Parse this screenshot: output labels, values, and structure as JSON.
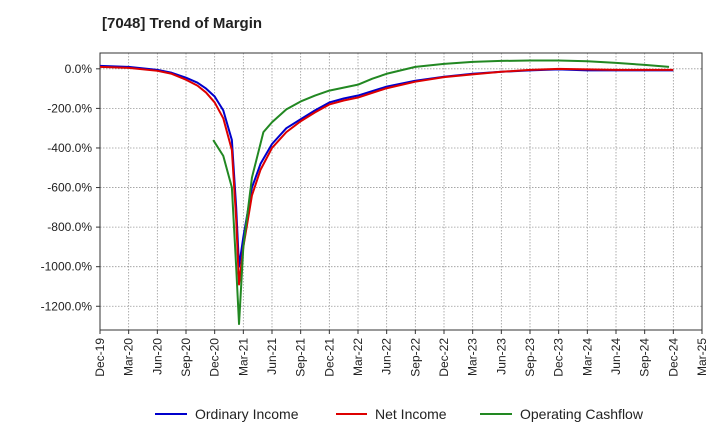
{
  "chart_data": {
    "type": "line",
    "title": "[7048]  Trend of Margin",
    "xlabel": "",
    "ylabel": "",
    "ylim": [
      -1320,
      80
    ],
    "yticks": [
      0,
      -200,
      -400,
      -600,
      -800,
      -1000,
      -1200
    ],
    "ytick_labels": [
      "0.0%",
      "-200.0%",
      "-400.0%",
      "-600.0%",
      "-800.0%",
      "-1000.0%",
      "-1200.0%"
    ],
    "xticks": [
      "Dec-19",
      "Mar-20",
      "Jun-20",
      "Sep-20",
      "Dec-20",
      "Mar-21",
      "Jun-21",
      "Sep-21",
      "Dec-21",
      "Mar-22",
      "Jun-22",
      "Sep-22",
      "Dec-22",
      "Mar-23",
      "Jun-23",
      "Sep-23",
      "Dec-23",
      "Mar-24",
      "Jun-24",
      "Sep-24",
      "Dec-24",
      "Mar-25"
    ],
    "grid": true,
    "legend_position": "bottom",
    "series": [
      {
        "name": "Ordinary Income",
        "color": "#0000cc",
        "points": [
          [
            0,
            15
          ],
          [
            1,
            10
          ],
          [
            2,
            -5
          ],
          [
            2.5,
            -20
          ],
          [
            3,
            -45
          ],
          [
            3.4,
            -70
          ],
          [
            3.7,
            -100
          ],
          [
            4,
            -140
          ],
          [
            4.3,
            -210
          ],
          [
            4.6,
            -360
          ],
          [
            4.75,
            -700
          ],
          [
            4.85,
            -1000
          ],
          [
            5,
            -850
          ],
          [
            5.3,
            -600
          ],
          [
            5.6,
            -480
          ],
          [
            6,
            -380
          ],
          [
            6.5,
            -300
          ],
          [
            7,
            -255
          ],
          [
            7.5,
            -210
          ],
          [
            8,
            -170
          ],
          [
            8.5,
            -150
          ],
          [
            9,
            -135
          ],
          [
            10,
            -90
          ],
          [
            11,
            -60
          ],
          [
            12,
            -40
          ],
          [
            13,
            -25
          ],
          [
            14,
            -15
          ],
          [
            15,
            -8
          ],
          [
            16,
            -3
          ],
          [
            17,
            -8
          ],
          [
            18,
            -8
          ],
          [
            19,
            -8
          ],
          [
            20,
            -8
          ]
        ]
      },
      {
        "name": "Net Income",
        "color": "#dd0000",
        "points": [
          [
            0,
            10
          ],
          [
            1,
            5
          ],
          [
            2,
            -10
          ],
          [
            2.5,
            -25
          ],
          [
            3,
            -55
          ],
          [
            3.4,
            -85
          ],
          [
            3.7,
            -120
          ],
          [
            4,
            -170
          ],
          [
            4.3,
            -250
          ],
          [
            4.6,
            -410
          ],
          [
            4.75,
            -760
          ],
          [
            4.85,
            -1090
          ],
          [
            5,
            -900
          ],
          [
            5.3,
            -640
          ],
          [
            5.6,
            -510
          ],
          [
            6,
            -400
          ],
          [
            6.5,
            -320
          ],
          [
            7,
            -265
          ],
          [
            7.5,
            -220
          ],
          [
            8,
            -180
          ],
          [
            8.5,
            -160
          ],
          [
            9,
            -145
          ],
          [
            10,
            -98
          ],
          [
            11,
            -65
          ],
          [
            12,
            -42
          ],
          [
            13,
            -28
          ],
          [
            14,
            -15
          ],
          [
            15,
            -5
          ],
          [
            16,
            0
          ],
          [
            17,
            -3
          ],
          [
            18,
            -5
          ],
          [
            19,
            -5
          ],
          [
            20,
            -5
          ]
        ]
      },
      {
        "name": "Operating Cashflow",
        "color": "#228822",
        "points": [
          [
            3.95,
            -360
          ],
          [
            4.3,
            -440
          ],
          [
            4.6,
            -600
          ],
          [
            4.75,
            -1000
          ],
          [
            4.85,
            -1290
          ],
          [
            5,
            -900
          ],
          [
            5.3,
            -550
          ],
          [
            5.7,
            -320
          ],
          [
            6,
            -270
          ],
          [
            6.5,
            -205
          ],
          [
            7,
            -165
          ],
          [
            7.5,
            -135
          ],
          [
            8,
            -110
          ],
          [
            8.5,
            -95
          ],
          [
            9,
            -80
          ],
          [
            9.5,
            -50
          ],
          [
            10,
            -25
          ],
          [
            11,
            10
          ],
          [
            12,
            25
          ],
          [
            13,
            35
          ],
          [
            14,
            40
          ],
          [
            15,
            42
          ],
          [
            16,
            42
          ],
          [
            17,
            38
          ],
          [
            18,
            30
          ],
          [
            19,
            20
          ],
          [
            19.85,
            10
          ]
        ]
      }
    ]
  }
}
